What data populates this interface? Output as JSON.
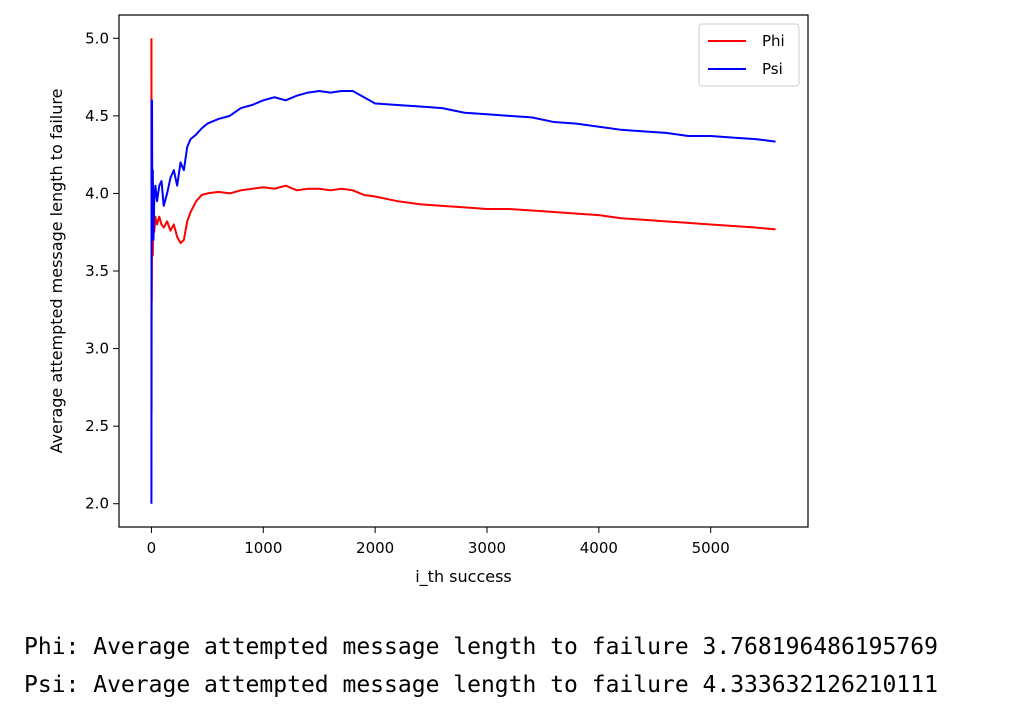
{
  "chart_data": {
    "type": "line",
    "title": "",
    "xlabel": "i_th success",
    "ylabel": "Average attempted message length to failure",
    "xlim": [
      -290,
      5870
    ],
    "ylim": [
      1.85,
      5.15
    ],
    "xticks": [
      0,
      1000,
      2000,
      3000,
      4000,
      5000
    ],
    "yticks": [
      2.0,
      2.5,
      3.0,
      3.5,
      4.0,
      4.5,
      5.0
    ],
    "xtick_labels": [
      "0",
      "1000",
      "2000",
      "3000",
      "4000",
      "5000"
    ],
    "ytick_labels": [
      "2.0",
      "2.5",
      "3.0",
      "3.5",
      "4.0",
      "4.5",
      "5.0"
    ],
    "grid": false,
    "legend_position": "top-right",
    "series": [
      {
        "name": "Phi",
        "color": "#ff0000",
        "x": [
          0,
          1,
          2,
          3,
          5,
          8,
          12,
          18,
          25,
          35,
          50,
          70,
          90,
          110,
          140,
          170,
          200,
          230,
          260,
          290,
          320,
          350,
          400,
          450,
          500,
          600,
          700,
          800,
          900,
          1000,
          1100,
          1200,
          1300,
          1400,
          1500,
          1600,
          1700,
          1800,
          1900,
          2000,
          2200,
          2400,
          2600,
          2800,
          3000,
          3200,
          3400,
          3600,
          3800,
          4000,
          4200,
          4400,
          4600,
          4800,
          5000,
          5200,
          5400,
          5580
        ],
        "y": [
          5.0,
          2.6,
          3.5,
          3.3,
          3.7,
          3.8,
          3.6,
          3.9,
          3.75,
          3.85,
          3.8,
          3.85,
          3.8,
          3.78,
          3.82,
          3.76,
          3.8,
          3.72,
          3.68,
          3.7,
          3.82,
          3.88,
          3.95,
          3.99,
          4.0,
          4.01,
          4.0,
          4.02,
          4.03,
          4.04,
          4.03,
          4.05,
          4.02,
          4.03,
          4.03,
          4.02,
          4.03,
          4.02,
          3.99,
          3.98,
          3.95,
          3.93,
          3.92,
          3.91,
          3.9,
          3.9,
          3.89,
          3.88,
          3.87,
          3.86,
          3.84,
          3.83,
          3.82,
          3.81,
          3.8,
          3.79,
          3.78,
          3.768
        ]
      },
      {
        "name": "Psi",
        "color": "#0000ff",
        "x": [
          0,
          1,
          2,
          3,
          5,
          8,
          12,
          18,
          25,
          35,
          50,
          70,
          90,
          110,
          140,
          170,
          200,
          230,
          260,
          290,
          320,
          350,
          400,
          450,
          500,
          600,
          700,
          800,
          900,
          1000,
          1100,
          1200,
          1300,
          1400,
          1500,
          1600,
          1700,
          1800,
          1900,
          2000,
          2200,
          2400,
          2600,
          2800,
          3000,
          3200,
          3400,
          3600,
          3800,
          4000,
          4200,
          4400,
          4600,
          4800,
          5000,
          5200,
          5400,
          5580
        ],
        "y": [
          2.0,
          4.6,
          3.7,
          4.0,
          4.6,
          3.9,
          4.15,
          3.7,
          3.95,
          4.05,
          3.95,
          4.05,
          4.08,
          3.92,
          4.0,
          4.1,
          4.15,
          4.05,
          4.2,
          4.15,
          4.3,
          4.35,
          4.38,
          4.42,
          4.45,
          4.48,
          4.5,
          4.55,
          4.57,
          4.6,
          4.62,
          4.6,
          4.63,
          4.65,
          4.66,
          4.65,
          4.66,
          4.66,
          4.62,
          4.58,
          4.57,
          4.56,
          4.55,
          4.52,
          4.51,
          4.5,
          4.49,
          4.46,
          4.45,
          4.43,
          4.41,
          4.4,
          4.39,
          4.37,
          4.37,
          4.36,
          4.35,
          4.334
        ]
      }
    ]
  },
  "output": {
    "phi_line": "Phi: Average attempted message length to failure 3.768196486195769",
    "psi_line": "Psi: Average attempted message length to failure 4.333632126210111"
  }
}
